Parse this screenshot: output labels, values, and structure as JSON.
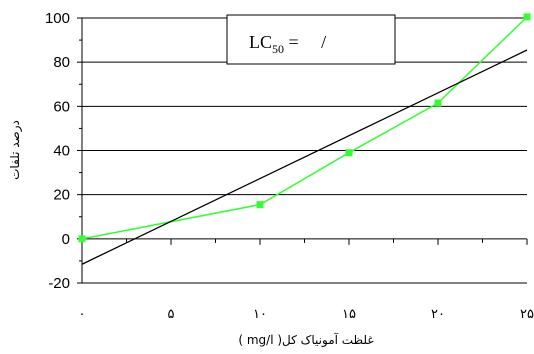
{
  "chart_data": {
    "type": "line",
    "title": "",
    "xlabel": "غلظت آمونیاک کل( mg/l )",
    "ylabel": "درصد تلفات",
    "xlim": [
      0,
      25
    ],
    "ylim": [
      -20,
      100
    ],
    "x_ticks": [
      0,
      5,
      10,
      15,
      20,
      25
    ],
    "x_tick_labels": [
      "۰",
      "۵",
      "۱۰",
      "۱۵",
      "۲۰",
      "۲۵"
    ],
    "y_ticks": [
      -20,
      0,
      20,
      40,
      60,
      80,
      100
    ],
    "y_tick_labels": [
      "-20",
      "0",
      "20",
      "40",
      "60",
      "80",
      "100"
    ],
    "grid": "horizontal",
    "legend": "none",
    "annotation": {
      "text_main": "LC",
      "text_sub": "50",
      "text_rest": " =     /"
    },
    "series": [
      {
        "kind": "observed",
        "color": "#33ff33",
        "marker": "square",
        "x": [
          0,
          10,
          15,
          20,
          25
        ],
        "y": [
          0,
          15.5,
          39,
          61.5,
          100.5
        ]
      },
      {
        "kind": "regression",
        "color": "#000000",
        "marker": "none",
        "x": [
          0,
          25
        ],
        "y": [
          -11.5,
          85.5
        ]
      }
    ]
  }
}
